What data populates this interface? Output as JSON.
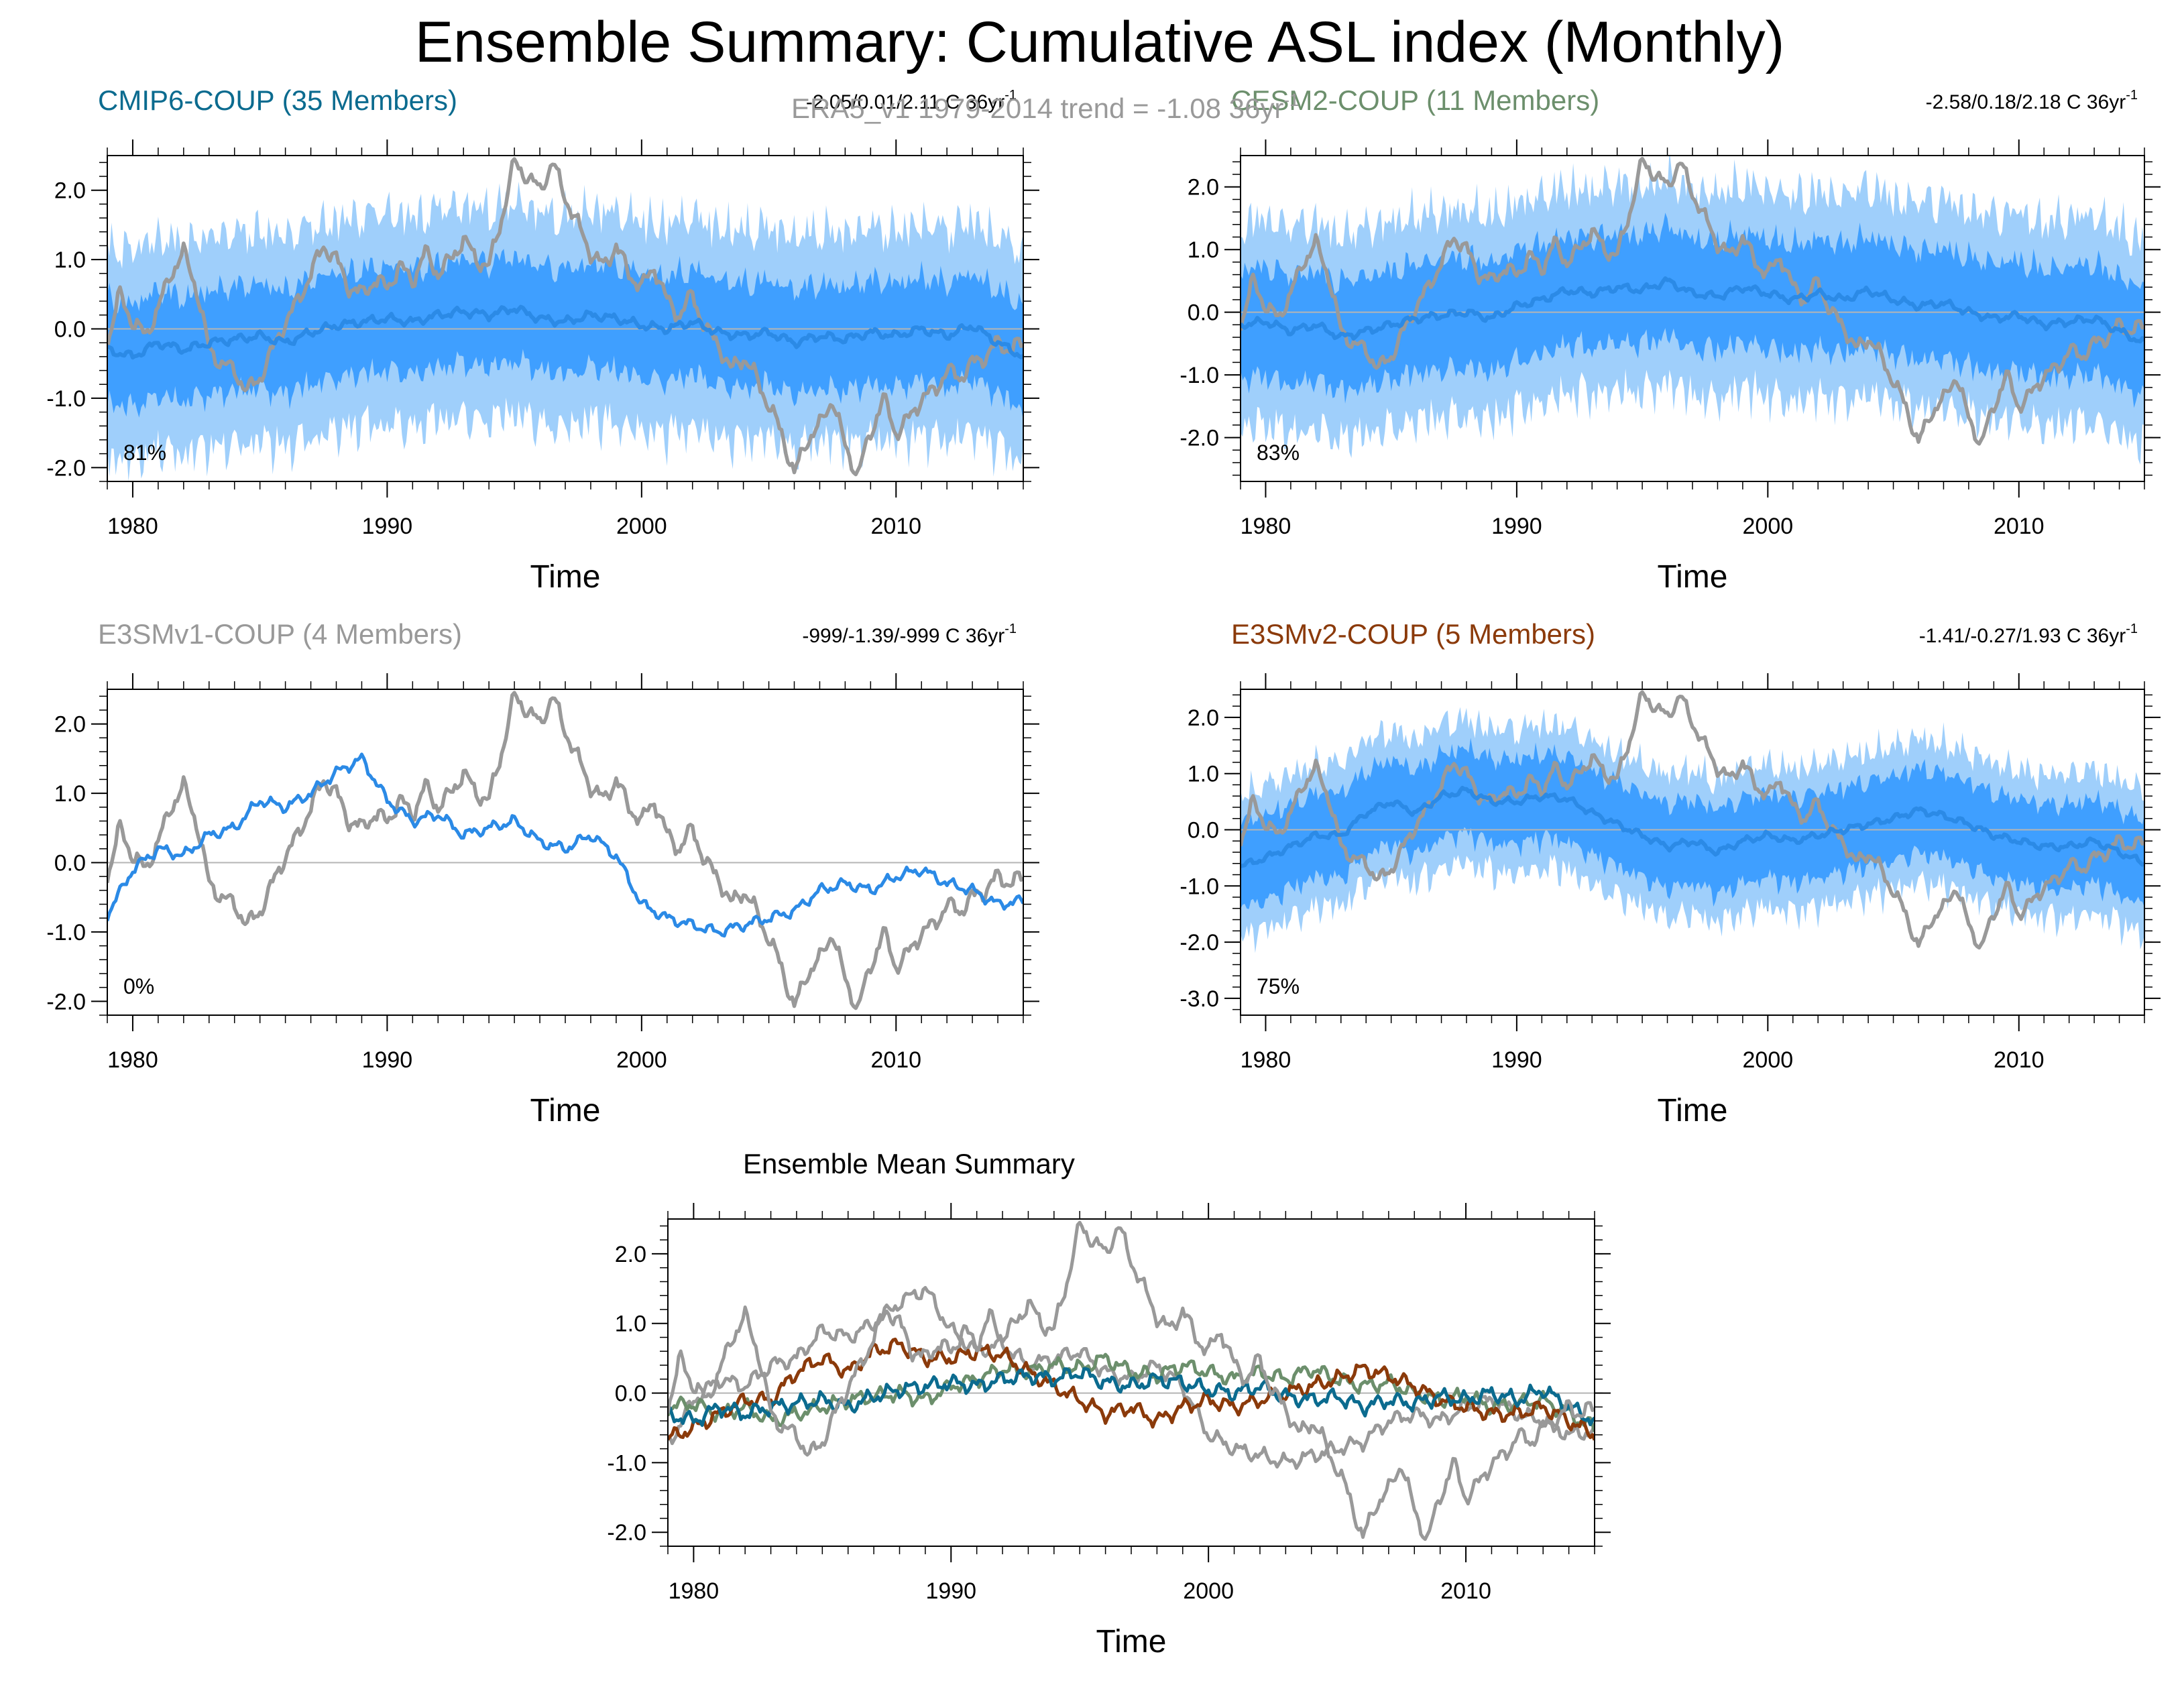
{
  "title": "Ensemble Summary: Cumulative ASL index (Monthly)",
  "colors": {
    "obs": "#999999",
    "ens_mean": "#2b8ae6",
    "spread_inner": "#3f9fff",
    "spread_outer": "#9fcffb",
    "cmip6": "#0b6b8f",
    "cesm2": "#6c8f6c",
    "e3smv1": "#999999",
    "e3smv2": "#8b3a0a",
    "zero_line": "#b5b5b5"
  },
  "obs_annotation": "ERA5_v1 1979-2014 trend = -1.08 36yr",
  "obs_annotation_sup": "-1",
  "chart_data": [
    {
      "id": "cmip6",
      "type": "line",
      "title": "CMIP6-COUP (35 Members)",
      "title_color": "#0b6b8f",
      "trend_text": "-2.05/0.01/2.11 C 36yr",
      "trend_sup": "-1",
      "percent_label": "81%",
      "xlabel": "Time",
      "xlim": [
        1979,
        2015
      ],
      "ylim": [
        -2.2,
        2.5
      ],
      "yticks": [
        -2.0,
        -1.0,
        0.0,
        1.0,
        2.0
      ],
      "ytick_labels": [
        "-2.0",
        "-1.0",
        "0.0",
        "1.0",
        "2.0"
      ],
      "xticks": [
        1980,
        1990,
        2000,
        2010
      ],
      "xtick_labels": [
        "1980",
        "1990",
        "2000",
        "2010"
      ],
      "mode": "spread",
      "ens_mean_key": "cmip6",
      "inner_half": 0.62,
      "outer_half": 1.25
    },
    {
      "id": "cesm2",
      "type": "line",
      "title": "CESM2-COUP (11 Members)",
      "title_color": "#6c8f6c",
      "trend_text": "-2.58/0.18/2.18 C 36yr",
      "trend_sup": "-1",
      "percent_label": "83%",
      "xlabel": "Time",
      "xlim": [
        1979,
        2015
      ],
      "ylim": [
        -2.7,
        2.5
      ],
      "yticks": [
        -2.0,
        -1.0,
        0.0,
        1.0,
        2.0
      ],
      "ytick_labels": [
        "-2.0",
        "-1.0",
        "0.0",
        "1.0",
        "2.0"
      ],
      "xticks": [
        1980,
        1990,
        2000,
        2010
      ],
      "xtick_labels": [
        "1980",
        "1990",
        "2000",
        "2010"
      ],
      "mode": "spread",
      "ens_mean_key": "cesm2",
      "inner_half": 0.72,
      "outer_half": 1.35
    },
    {
      "id": "e3smv1",
      "type": "line",
      "title": "E3SMv1-COUP (4 Members)",
      "title_color": "#999999",
      "trend_text": "-999/-1.39/-999 C 36yr",
      "trend_sup": "-1",
      "percent_label": "0%",
      "xlabel": "Time",
      "xlim": [
        1979,
        2015
      ],
      "ylim": [
        -2.2,
        2.5
      ],
      "yticks": [
        -2.0,
        -1.0,
        0.0,
        1.0,
        2.0
      ],
      "ytick_labels": [
        "-2.0",
        "-1.0",
        "0.0",
        "1.0",
        "2.0"
      ],
      "xticks": [
        1980,
        1990,
        2000,
        2010
      ],
      "xtick_labels": [
        "1980",
        "1990",
        "2000",
        "2010"
      ],
      "mode": "line",
      "ens_mean_key": "e3smv1"
    },
    {
      "id": "e3smv2",
      "type": "line",
      "title": "E3SMv2-COUP (5 Members)",
      "title_color": "#8b3a0a",
      "trend_text": "-1.41/-0.27/1.93 C 36yr",
      "trend_sup": "-1",
      "percent_label": "75%",
      "xlabel": "Time",
      "xlim": [
        1979,
        2015
      ],
      "ylim": [
        -3.3,
        2.5
      ],
      "yticks": [
        -3.0,
        -2.0,
        -1.0,
        0.0,
        1.0,
        2.0
      ],
      "ytick_labels": [
        "-3.0",
        "-2.0",
        "-1.0",
        "0.0",
        "1.0",
        "2.0"
      ],
      "xticks": [
        1980,
        1990,
        2000,
        2010
      ],
      "xtick_labels": [
        "1980",
        "1990",
        "2000",
        "2010"
      ],
      "mode": "spread",
      "ens_mean_key": "e3smv2",
      "inner_half": 0.62,
      "outer_half": 1.05
    },
    {
      "id": "summary",
      "type": "line",
      "title": "Ensemble Mean Summary",
      "title_color": "#000000",
      "trend_text": "",
      "trend_sup": "",
      "percent_label": "",
      "xlabel": "Time",
      "xlim": [
        1979,
        2015
      ],
      "ylim": [
        -2.2,
        2.5
      ],
      "yticks": [
        -2.0,
        -1.0,
        0.0,
        1.0,
        2.0
      ],
      "ytick_labels": [
        "-2.0",
        "-1.0",
        "0.0",
        "1.0",
        "2.0"
      ],
      "xticks": [
        1980,
        1990,
        2000,
        2010
      ],
      "xtick_labels": [
        "1980",
        "1990",
        "2000",
        "2010"
      ],
      "mode": "multi",
      "series_keys": [
        "e3smv1",
        "cesm2",
        "e3smv2",
        "cmip6"
      ]
    }
  ],
  "series": {
    "obs": {
      "name": "ERA5_v1",
      "x": [
        1979.0,
        1979.5,
        1980.0,
        1980.5,
        1981.0,
        1981.5,
        1982.0,
        1982.5,
        1983.0,
        1983.5,
        1984.0,
        1984.5,
        1985.0,
        1985.5,
        1986.0,
        1986.5,
        1987.0,
        1987.5,
        1988.0,
        1988.5,
        1989.0,
        1989.5,
        1990.0,
        1990.5,
        1991.0,
        1991.5,
        1992.0,
        1992.5,
        1993.0,
        1993.5,
        1994.0,
        1994.5,
        1995.0,
        1995.5,
        1996.0,
        1996.5,
        1997.0,
        1997.5,
        1998.0,
        1998.5,
        1999.0,
        1999.5,
        2000.0,
        2000.5,
        2001.0,
        2001.5,
        2002.0,
        2002.5,
        2003.0,
        2003.5,
        2004.0,
        2004.5,
        2005.0,
        2005.5,
        2006.0,
        2006.5,
        2007.0,
        2007.5,
        2008.0,
        2008.5,
        2009.0,
        2009.5,
        2010.0,
        2010.5,
        2011.0,
        2011.5,
        2012.0,
        2012.5,
        2013.0,
        2013.5,
        2014.0,
        2014.5,
        2015.0
      ],
      "values": [
        -0.2,
        0.5,
        0.1,
        -0.1,
        0.3,
        0.8,
        1.1,
        0.6,
        -0.3,
        -0.5,
        -0.6,
        -0.9,
        -0.7,
        -0.3,
        0.1,
        0.4,
        0.8,
        1.2,
        1.0,
        0.6,
        0.5,
        0.7,
        0.6,
        0.9,
        0.7,
        1.1,
        0.8,
        1.0,
        1.3,
        1.0,
        0.9,
        1.6,
        2.4,
        2.2,
        2.0,
        2.4,
        1.9,
        1.5,
        1.1,
        0.9,
        1.2,
        0.8,
        0.6,
        0.9,
        0.4,
        0.2,
        0.5,
        0.0,
        -0.2,
        -0.6,
        -0.4,
        -0.7,
        -1.1,
        -1.5,
        -2.1,
        -1.6,
        -1.4,
        -1.0,
        -1.7,
        -2.1,
        -1.5,
        -1.0,
        -1.5,
        -1.3,
        -1.0,
        -0.9,
        -0.6,
        -0.7,
        -0.5,
        -0.4,
        -0.2,
        -0.3,
        -0.2
      ]
    },
    "cmip6": {
      "name": "CMIP6-COUP",
      "x": [
        1979.0,
        1980.0,
        1981.0,
        1982.0,
        1983.0,
        1984.0,
        1985.0,
        1986.0,
        1987.0,
        1988.0,
        1989.0,
        1990.0,
        1991.0,
        1992.0,
        1993.0,
        1994.0,
        1995.0,
        1996.0,
        1997.0,
        1998.0,
        1999.0,
        2000.0,
        2001.0,
        2002.0,
        2003.0,
        2004.0,
        2005.0,
        2006.0,
        2007.0,
        2008.0,
        2009.0,
        2010.0,
        2011.0,
        2012.0,
        2013.0,
        2014.0,
        2015.0
      ],
      "values": [
        -0.3,
        -0.4,
        -0.2,
        -0.3,
        -0.2,
        -0.15,
        -0.1,
        -0.2,
        -0.05,
        0.05,
        0.1,
        0.15,
        0.1,
        0.2,
        0.25,
        0.2,
        0.3,
        0.15,
        0.1,
        0.2,
        0.15,
        0.05,
        0.0,
        0.1,
        -0.05,
        -0.1,
        -0.05,
        -0.2,
        -0.1,
        -0.15,
        -0.05,
        -0.1,
        0.0,
        -0.1,
        0.05,
        -0.2,
        -0.4
      ]
    },
    "cesm2": {
      "name": "CESM2-COUP",
      "x": [
        1979.0,
        1980.0,
        1981.0,
        1982.0,
        1983.0,
        1984.0,
        1985.0,
        1986.0,
        1987.0,
        1988.0,
        1989.0,
        1990.0,
        1991.0,
        1992.0,
        1993.0,
        1994.0,
        1995.0,
        1996.0,
        1997.0,
        1998.0,
        1999.0,
        2000.0,
        2001.0,
        2002.0,
        2003.0,
        2004.0,
        2005.0,
        2006.0,
        2007.0,
        2008.0,
        2009.0,
        2010.0,
        2011.0,
        2012.0,
        2013.0,
        2014.0,
        2015.0
      ],
      "values": [
        -0.2,
        -0.15,
        -0.3,
        -0.2,
        -0.4,
        -0.3,
        -0.2,
        -0.1,
        -0.05,
        0.0,
        -0.1,
        0.1,
        0.2,
        0.35,
        0.3,
        0.4,
        0.35,
        0.5,
        0.3,
        0.25,
        0.4,
        0.3,
        0.2,
        0.3,
        0.2,
        0.35,
        0.2,
        0.1,
        0.15,
        0.0,
        -0.1,
        -0.05,
        -0.2,
        -0.15,
        -0.1,
        -0.3,
        -0.5
      ]
    },
    "e3smv1": {
      "name": "E3SMv1-COUP",
      "x": [
        1979.0,
        1980.0,
        1981.0,
        1982.0,
        1983.0,
        1984.0,
        1985.0,
        1986.0,
        1987.0,
        1988.0,
        1989.0,
        1990.0,
        1991.0,
        1992.0,
        1993.0,
        1994.0,
        1995.0,
        1996.0,
        1997.0,
        1998.0,
        1999.0,
        2000.0,
        2001.0,
        2002.0,
        2003.0,
        2004.0,
        2005.0,
        2006.0,
        2007.0,
        2008.0,
        2009.0,
        2010.0,
        2011.0,
        2012.0,
        2013.0,
        2014.0,
        2015.0
      ],
      "values": [
        -0.75,
        -0.1,
        0.2,
        0.1,
        0.4,
        0.5,
        0.9,
        0.8,
        1.0,
        1.3,
        1.5,
        0.9,
        0.6,
        0.7,
        0.4,
        0.5,
        0.6,
        0.3,
        0.2,
        0.4,
        0.1,
        -0.6,
        -0.8,
        -0.9,
        -1.0,
        -0.9,
        -0.8,
        -0.7,
        -0.4,
        -0.3,
        -0.4,
        -0.2,
        -0.1,
        -0.3,
        -0.4,
        -0.6,
        -0.55
      ]
    },
    "e3smv2": {
      "name": "E3SMv2-COUP",
      "x": [
        1979.0,
        1980.0,
        1981.0,
        1982.0,
        1983.0,
        1984.0,
        1985.0,
        1986.0,
        1987.0,
        1988.0,
        1989.0,
        1990.0,
        1991.0,
        1992.0,
        1993.0,
        1994.0,
        1995.0,
        1996.0,
        1997.0,
        1998.0,
        1999.0,
        2000.0,
        2001.0,
        2002.0,
        2003.0,
        2004.0,
        2005.0,
        2006.0,
        2007.0,
        2008.0,
        2009.0,
        2010.0,
        2011.0,
        2012.0,
        2013.0,
        2014.0,
        2015.0
      ],
      "values": [
        -0.65,
        -0.5,
        -0.3,
        -0.1,
        -0.1,
        0.3,
        0.5,
        0.3,
        0.6,
        0.7,
        0.5,
        0.5,
        0.6,
        0.55,
        0.3,
        0.1,
        -0.1,
        -0.3,
        -0.2,
        -0.4,
        -0.2,
        -0.1,
        -0.2,
        -0.1,
        0.0,
        0.1,
        0.2,
        0.35,
        0.25,
        0.1,
        -0.1,
        -0.2,
        -0.3,
        -0.3,
        -0.2,
        -0.4,
        -0.6
      ]
    }
  }
}
